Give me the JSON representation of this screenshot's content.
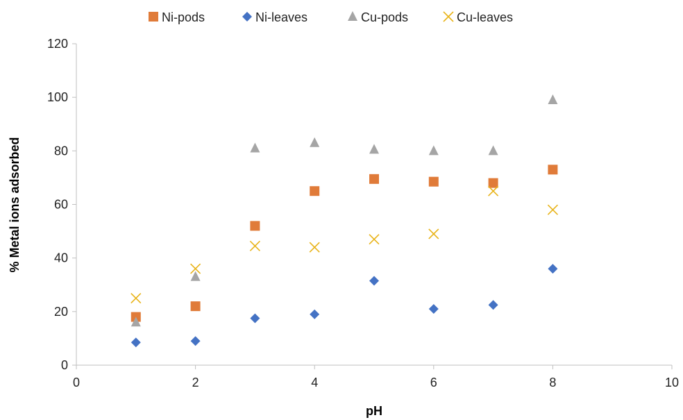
{
  "chart_data": {
    "type": "scatter",
    "xlabel": "pH",
    "ylabel": "% Metal ions adsorbed",
    "xlim": [
      0,
      10
    ],
    "ylim": [
      0,
      120
    ],
    "xticks": [
      "0",
      "2",
      "4",
      "6",
      "8",
      "10"
    ],
    "yticks": [
      "0",
      "20",
      "40",
      "60",
      "80",
      "100",
      "120"
    ],
    "grid": false,
    "legend_position": "top",
    "series": [
      {
        "name": "Ni-pods",
        "marker": "square",
        "color": "#E07B39",
        "x": [
          1,
          2,
          3,
          4,
          5,
          6,
          7,
          8
        ],
        "y": [
          18,
          22,
          52,
          65,
          69.5,
          68.5,
          68,
          73
        ]
      },
      {
        "name": "Ni-leaves",
        "marker": "diamond",
        "color": "#4472C4",
        "x": [
          1,
          2,
          3,
          4,
          5,
          6,
          7,
          8
        ],
        "y": [
          8.5,
          9,
          17.5,
          19,
          31.5,
          21,
          22.5,
          36
        ]
      },
      {
        "name": "Cu-pods",
        "marker": "triangle",
        "color": "#A5A5A5",
        "x": [
          1,
          2,
          3,
          4,
          5,
          6,
          7,
          8
        ],
        "y": [
          16,
          33,
          81,
          83,
          80.5,
          80,
          80,
          99
        ]
      },
      {
        "name": "Cu-leaves",
        "marker": "x",
        "color": "#E8B318",
        "x": [
          1,
          2,
          3,
          4,
          5,
          6,
          7,
          8
        ],
        "y": [
          25,
          36,
          44.5,
          44,
          47,
          49,
          65,
          58
        ]
      }
    ]
  }
}
